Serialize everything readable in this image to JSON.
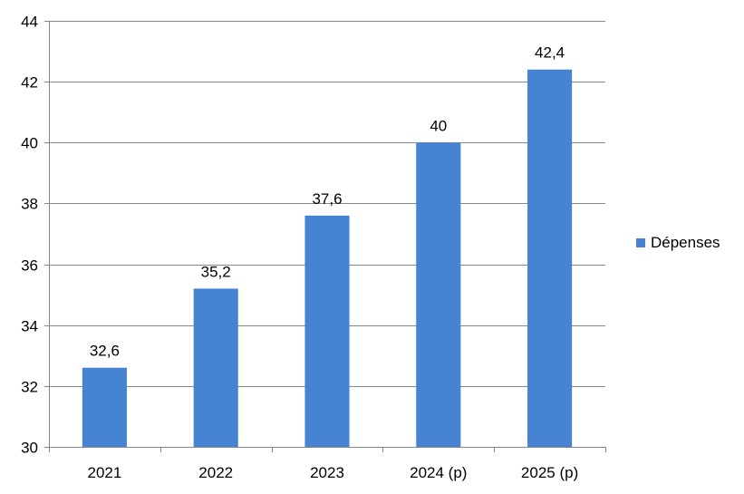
{
  "chart_data": {
    "type": "bar",
    "categories": [
      "2021",
      "2022",
      "2023",
      "2024 (p)",
      "2025 (p)"
    ],
    "series": [
      {
        "name": "Dépenses",
        "values": [
          32.6,
          35.2,
          37.6,
          40,
          42.4
        ],
        "data_labels": [
          "32,6",
          "35,2",
          "37,6",
          "40",
          "42,4"
        ],
        "color": "#4684D3"
      }
    ],
    "title": "",
    "xlabel": "",
    "ylabel": "",
    "ylim": [
      30,
      44
    ],
    "yticks": [
      30,
      32,
      34,
      36,
      38,
      40,
      42,
      44
    ],
    "grid": true,
    "legend_position": "right"
  }
}
